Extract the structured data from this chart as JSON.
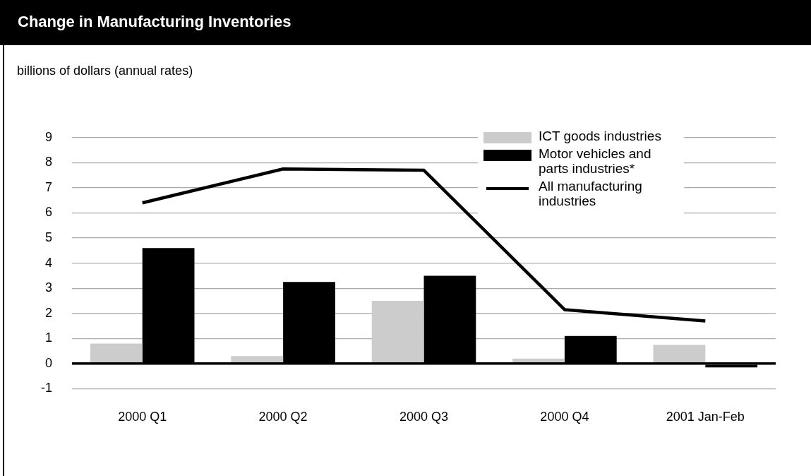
{
  "chart_data": {
    "type": "bar",
    "title": "Change in Manufacturing Inventories",
    "ylabel": "billions of dollars (annual rates)",
    "categories": [
      "2000 Q1",
      "2000 Q2",
      "2000 Q3",
      "2000 Q4",
      "2001 Jan-Feb"
    ],
    "series": [
      {
        "name": "ICT goods industries",
        "color": "#cccccc",
        "values": [
          0.8,
          0.3,
          2.5,
          0.2,
          0.75
        ]
      },
      {
        "name": "Motor vehicles and parts industries*",
        "color": "#000000",
        "values": [
          4.6,
          3.25,
          3.5,
          1.1,
          -0.15
        ]
      },
      {
        "name": "All manufacturing industries",
        "type": "line",
        "color": "#000000",
        "values": [
          6.4,
          7.75,
          7.7,
          2.15,
          1.7
        ]
      }
    ],
    "ylim": [
      -1,
      9
    ],
    "yticks": [
      -1,
      0,
      1,
      2,
      3,
      4,
      5,
      6,
      7,
      8,
      9
    ],
    "grid": "y",
    "legend": "top right",
    "marker": "none"
  }
}
